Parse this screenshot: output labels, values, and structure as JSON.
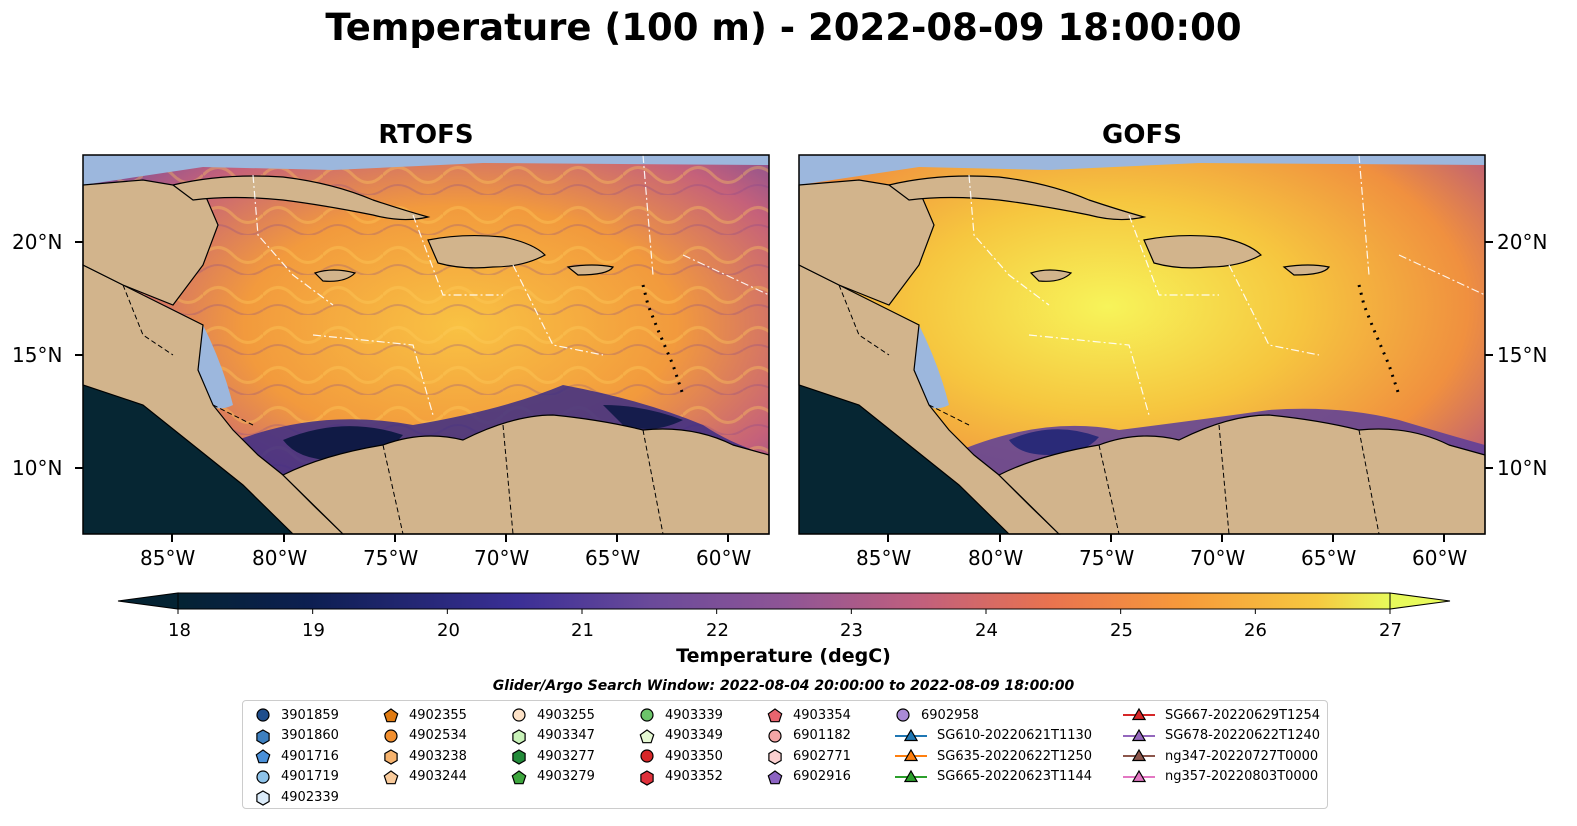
{
  "title": "Temperature (100 m) - 2022-08-09 18:00:00",
  "panels": [
    {
      "title": "RTOFS"
    },
    {
      "title": "GOFS"
    }
  ],
  "lon_ticks": [
    "85°W",
    "80°W",
    "75°W",
    "70°W",
    "65°W",
    "60°W"
  ],
  "lat_ticks": [
    "20°N",
    "15°N",
    "10°N"
  ],
  "chart_data": {
    "type": "heatmap",
    "variable": "Temperature",
    "depth": "100 m",
    "time": "2022-08-09 18:00:00",
    "lon_range": [
      -89,
      -58
    ],
    "lat_range": [
      7,
      24
    ],
    "colorbar": {
      "label": "Temperature (degC)",
      "min": 18,
      "max": 27,
      "step": 0.5,
      "ticks": [
        "18",
        "19",
        "20",
        "21",
        "22",
        "23",
        "24",
        "25",
        "26",
        "27"
      ],
      "extend": "both",
      "colormap": "thermal"
    }
  },
  "colors": {
    "land": "#d2b48c",
    "shallow": "#9cb7dd",
    "warm": "#f6a83e",
    "cold": "#2c2a6c"
  },
  "search_window": "Glider/Argo Search Window: 2022-08-04 20:00:00 to 2022-08-09 18:00:00",
  "legend": [
    {
      "label": "3901859",
      "marker": "circle",
      "color": "#1f4e8c"
    },
    {
      "label": "3901860",
      "marker": "hexagon",
      "color": "#3d7fbf"
    },
    {
      "label": "4901716",
      "marker": "pentagon",
      "color": "#4a90d9"
    },
    {
      "label": "4901719",
      "marker": "circle",
      "color": "#8ec3ea"
    },
    {
      "label": "4902339",
      "marker": "hexagon",
      "color": "#dcecfa"
    },
    {
      "label": "4902355",
      "marker": "pentagon",
      "color": "#e07b12"
    },
    {
      "label": "4902534",
      "marker": "circle",
      "color": "#f28f2e"
    },
    {
      "label": "4903238",
      "marker": "hexagon",
      "color": "#f6b36e"
    },
    {
      "label": "4903244",
      "marker": "pentagon",
      "color": "#f9cb9c"
    },
    {
      "label": "4903255",
      "marker": "circle",
      "color": "#fde2c7"
    },
    {
      "label": "4903347",
      "marker": "hexagon",
      "color": "#c8f2b8"
    },
    {
      "label": "4903277",
      "marker": "hexagon",
      "color": "#238b3a"
    },
    {
      "label": "4903279",
      "marker": "pentagon",
      "color": "#3ea63e"
    },
    {
      "label": "4903339",
      "marker": "circle",
      "color": "#6cc46a"
    },
    {
      "label": "4903349",
      "marker": "pentagon",
      "color": "#e6f9d4"
    },
    {
      "label": "4903350",
      "marker": "circle",
      "color": "#d62728"
    },
    {
      "label": "4903352",
      "marker": "hexagon",
      "color": "#e0313b"
    },
    {
      "label": "4903354",
      "marker": "pentagon",
      "color": "#e8646e"
    },
    {
      "label": "6901182",
      "marker": "circle",
      "color": "#f4a6a6"
    },
    {
      "label": "6902771",
      "marker": "hexagon",
      "color": "#fbd0d0"
    },
    {
      "label": "6902916",
      "marker": "pentagon",
      "color": "#8c63c2"
    },
    {
      "label": "6902958",
      "marker": "circle",
      "color": "#a98ad6"
    },
    {
      "label": "SG610-20220621T1130",
      "marker": "triangle-line",
      "color": "#1f77b4"
    },
    {
      "label": "SG635-20220622T1250",
      "marker": "triangle-line",
      "color": "#ff7f0e"
    },
    {
      "label": "SG665-20220623T1144",
      "marker": "triangle-line",
      "color": "#2ca02c"
    },
    {
      "label": "SG667-20220629T1254",
      "marker": "triangle-line",
      "color": "#d62728"
    },
    {
      "label": "SG678-20220622T1240",
      "marker": "triangle-line",
      "color": "#9467bd"
    },
    {
      "label": "ng347-20220727T0000",
      "marker": "triangle-line",
      "color": "#8c564b"
    },
    {
      "label": "ng357-20220803T0000",
      "marker": "triangle-line",
      "color": "#e377c2"
    }
  ]
}
